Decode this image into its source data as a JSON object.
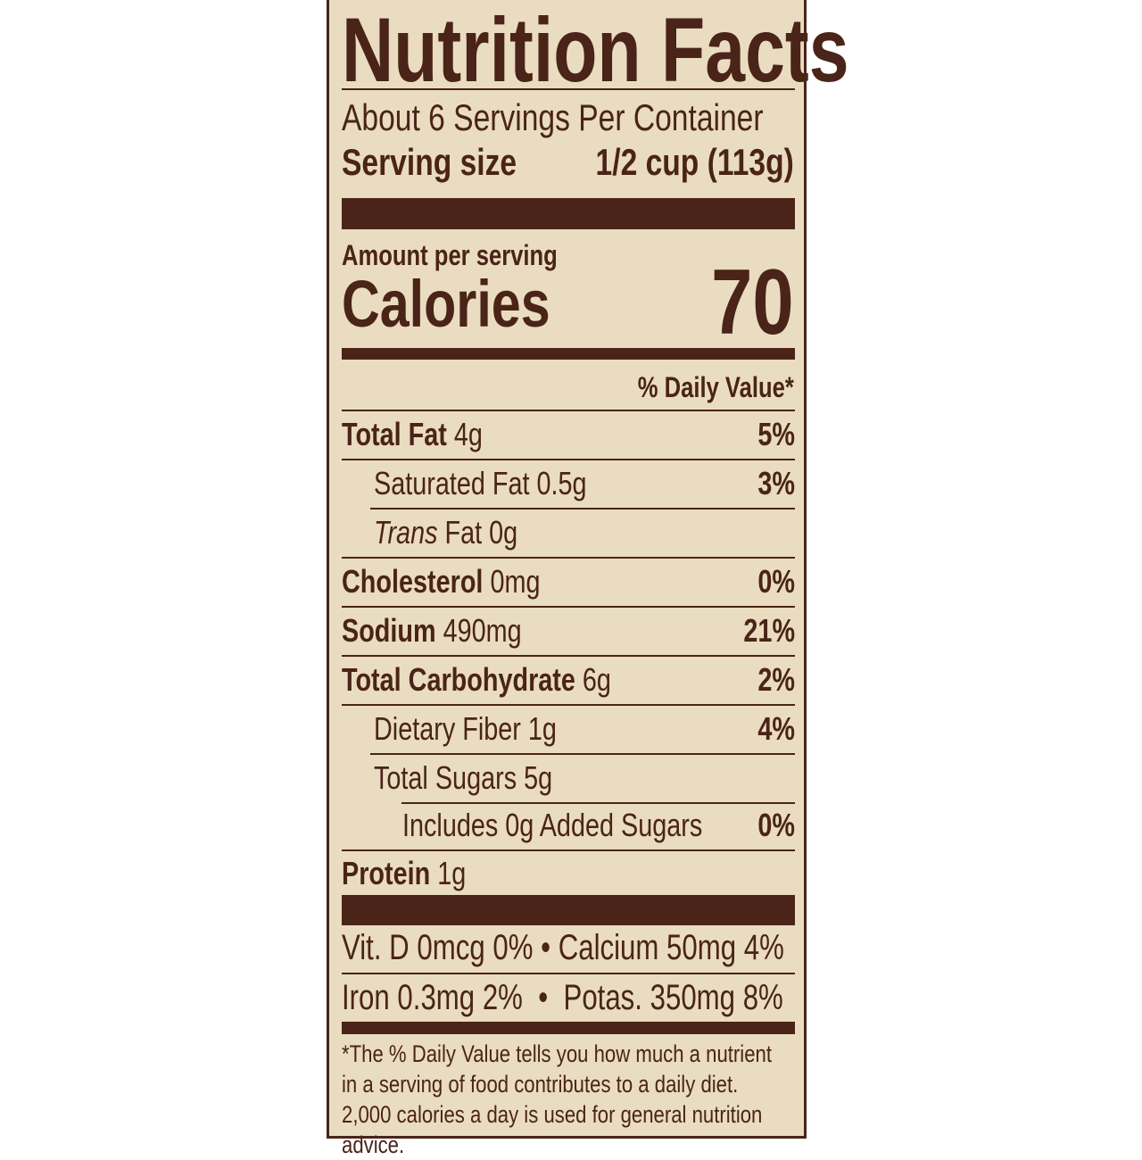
{
  "title": "Nutrition Facts",
  "servings_per_container": "About 6 Servings Per Container",
  "serving_size": {
    "label": "Serving size",
    "value": "1/2 cup (113g)"
  },
  "amount_per_serving": "Amount per serving",
  "calories": {
    "label": "Calories",
    "value": "70"
  },
  "daily_value_header": "% Daily Value*",
  "nutrients": [
    {
      "name": "Total Fat",
      "amount": "4g",
      "dv": "5%"
    },
    {
      "name": "Saturated Fat",
      "amount": "0.5g",
      "dv": "3%"
    },
    {
      "name": "Trans",
      "name_suffix": "Fat",
      "amount": "0g",
      "dv": ""
    },
    {
      "name": "Cholesterol",
      "amount": "0mg",
      "dv": "0%"
    },
    {
      "name": "Sodium",
      "amount": "490mg",
      "dv": "21%"
    },
    {
      "name": "Total Carbohydrate",
      "amount": "6g",
      "dv": "2%"
    },
    {
      "name": "Dietary Fiber",
      "amount": "1g",
      "dv": "4%"
    },
    {
      "name": "Total Sugars",
      "amount": "5g",
      "dv": ""
    },
    {
      "name": "Includes 0g Added Sugars",
      "amount": "",
      "dv": "0%"
    },
    {
      "name": "Protein",
      "amount": "1g",
      "dv": ""
    }
  ],
  "vitamins": [
    "Vit. D 0mcg 0% • Calcium 50mg 4%",
    "Iron 0.3mg 2%  •  Potas. 350mg 8%"
  ],
  "footnote": "*The % Daily Value tells you how much a nutrient in a serving of food contributes to a daily diet. 2,000 calories a day is used for general nutrition advice.",
  "colors": {
    "background": "#eadcc0",
    "ink": "#4a2418"
  }
}
